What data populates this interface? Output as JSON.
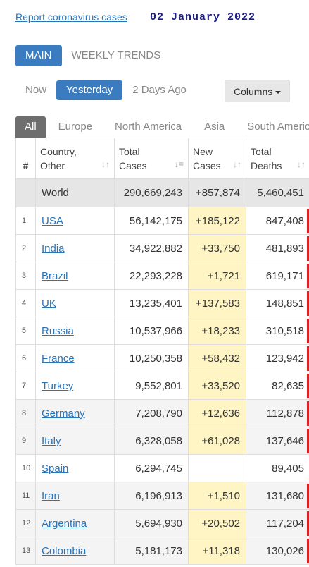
{
  "header": {
    "report_link": "Report coronavirus cases",
    "date": "02  January  2022"
  },
  "main_tabs": [
    "MAIN",
    "WEEKLY TRENDS"
  ],
  "day_tabs": [
    "Now",
    "Yesterday",
    "2 Days Ago"
  ],
  "columns_button": "Columns",
  "region_tabs": [
    "All",
    "Europe",
    "North America",
    "Asia",
    "South America"
  ],
  "table": {
    "headers": {
      "num": "#",
      "country_line1": "Country,",
      "country_line2": "Other",
      "total_line1": "Total",
      "total_line2": "Cases",
      "new_line1": "New",
      "new_line2": "Cases",
      "deaths_line1": "Total",
      "deaths_line2": "Deaths"
    },
    "world": {
      "country": "World",
      "total_cases": "290,669,243",
      "new_cases": "+857,874",
      "total_deaths": "5,460,451"
    },
    "rows": [
      {
        "num": "1",
        "country": "USA",
        "total_cases": "56,142,175",
        "new_cases": "+185,122",
        "total_deaths": "847,408"
      },
      {
        "num": "2",
        "country": "India",
        "total_cases": "34,922,882",
        "new_cases": "+33,750",
        "total_deaths": "481,893"
      },
      {
        "num": "3",
        "country": "Brazil",
        "total_cases": "22,293,228",
        "new_cases": "+1,721",
        "total_deaths": "619,171"
      },
      {
        "num": "4",
        "country": "UK",
        "total_cases": "13,235,401",
        "new_cases": "+137,583",
        "total_deaths": "148,851"
      },
      {
        "num": "5",
        "country": "Russia",
        "total_cases": "10,537,966",
        "new_cases": "+18,233",
        "total_deaths": "310,518"
      },
      {
        "num": "6",
        "country": "France",
        "total_cases": "10,250,358",
        "new_cases": "+58,432",
        "total_deaths": "123,942"
      },
      {
        "num": "7",
        "country": "Turkey",
        "total_cases": "9,552,801",
        "new_cases": "+33,520",
        "total_deaths": "82,635"
      },
      {
        "num": "8",
        "country": "Germany",
        "total_cases": "7,208,790",
        "new_cases": "+12,636",
        "total_deaths": "112,878"
      },
      {
        "num": "9",
        "country": "Italy",
        "total_cases": "6,328,058",
        "new_cases": "+61,028",
        "total_deaths": "137,646"
      },
      {
        "num": "10",
        "country": "Spain",
        "total_cases": "6,294,745",
        "new_cases": "",
        "total_deaths": "89,405"
      },
      {
        "num": "11",
        "country": "Iran",
        "total_cases": "6,196,913",
        "new_cases": "+1,510",
        "total_deaths": "131,680"
      },
      {
        "num": "12",
        "country": "Argentina",
        "total_cases": "5,694,930",
        "new_cases": "+20,502",
        "total_deaths": "117,204"
      },
      {
        "num": "13",
        "country": "Colombia",
        "total_cases": "5,181,173",
        "new_cases": "+11,318",
        "total_deaths": "130,026"
      }
    ]
  },
  "colors": {
    "accent": "#3b7cc1",
    "new_cases_highlight": "#fff5c4",
    "death_marker": "#e02020"
  }
}
